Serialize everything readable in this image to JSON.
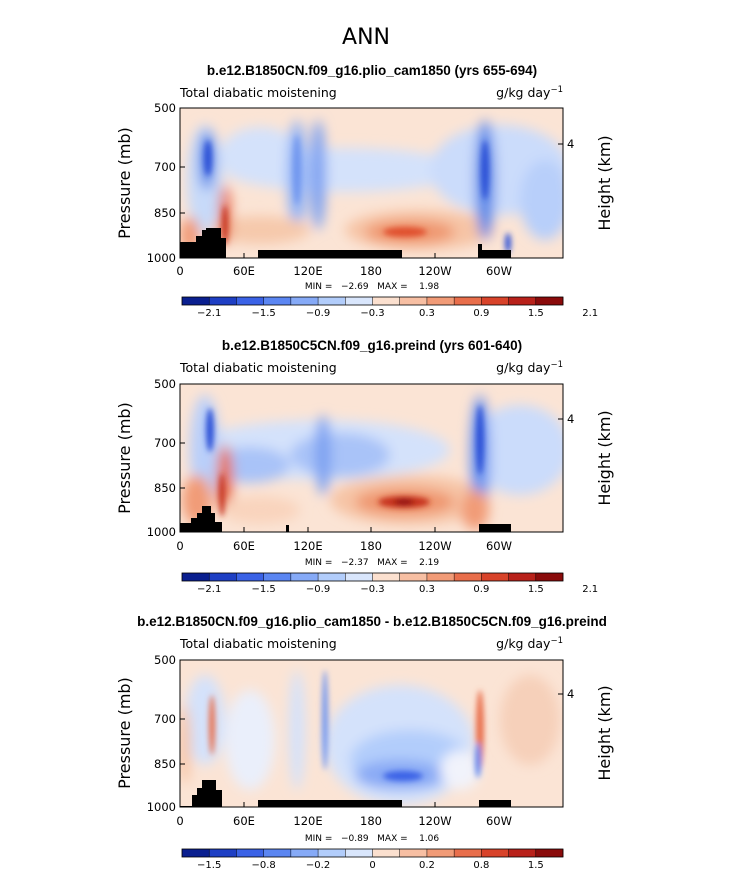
{
  "main_title": "ANN",
  "colorbar_colors": [
    "#0a1f8f",
    "#1e3fc4",
    "#3a62e6",
    "#5b86f2",
    "#86aaf7",
    "#b2cdfb",
    "#d9e6fc",
    "#fbe0cf",
    "#f7bfa3",
    "#f19b77",
    "#e86e4b",
    "#d8432a",
    "#b8211a",
    "#8a0b0b"
  ],
  "chart_data": [
    {
      "type": "heatmap",
      "title": "b.e12.B1850CN.f09_g16.plio_cam1850 (yrs 655-694)",
      "left_label": "Total diabatic moistening",
      "units": "g/kg day",
      "units_sup": "−1",
      "ylabel": "Pressure (mb)",
      "y2label": "Height (km)",
      "yticks": [
        "500",
        "700",
        "850",
        "1000"
      ],
      "y2ticks": [
        "4"
      ],
      "xticks": [
        "0",
        "60E",
        "120E",
        "180",
        "120W",
        "60W"
      ],
      "stats": "MIN =   −2.69   MAX =    1.98",
      "colorbar_labels": [
        "−2.1",
        "−1.5",
        "−0.9",
        "−0.3",
        "0.3",
        "0.9",
        "1.5",
        "2.1"
      ]
    },
    {
      "type": "heatmap",
      "title": "b.e12.B1850C5CN.f09_g16.preind (yrs 601-640)",
      "left_label": "Total diabatic moistening",
      "units": "g/kg day",
      "units_sup": "−1",
      "ylabel": "Pressure (mb)",
      "y2label": "Height (km)",
      "yticks": [
        "500",
        "700",
        "850",
        "1000"
      ],
      "y2ticks": [
        "4"
      ],
      "xticks": [
        "0",
        "60E",
        "120E",
        "180",
        "120W",
        "60W"
      ],
      "stats": "MIN =   −2.37   MAX =    2.19",
      "colorbar_labels": [
        "−2.1",
        "−1.5",
        "−0.9",
        "−0.3",
        "0.3",
        "0.9",
        "1.5",
        "2.1"
      ]
    },
    {
      "type": "heatmap",
      "title": "b.e12.B1850CN.f09_g16.plio_cam1850 - b.e12.B1850C5CN.f09_g16.preind",
      "left_label": "Total diabatic moistening",
      "units": "g/kg day",
      "units_sup": "−1",
      "ylabel": "Pressure (mb)",
      "y2label": "Height (km)",
      "yticks": [
        "500",
        "700",
        "850",
        "1000"
      ],
      "y2ticks": [
        "4"
      ],
      "xticks": [
        "0",
        "60E",
        "120E",
        "180",
        "120W",
        "60W"
      ],
      "stats": "MIN =   −0.89   MAX =    1.06",
      "colorbar_labels": [
        "−1.5",
        "−0.8",
        "−0.2",
        "0",
        "0.2",
        "0.8",
        "1.5"
      ]
    }
  ]
}
